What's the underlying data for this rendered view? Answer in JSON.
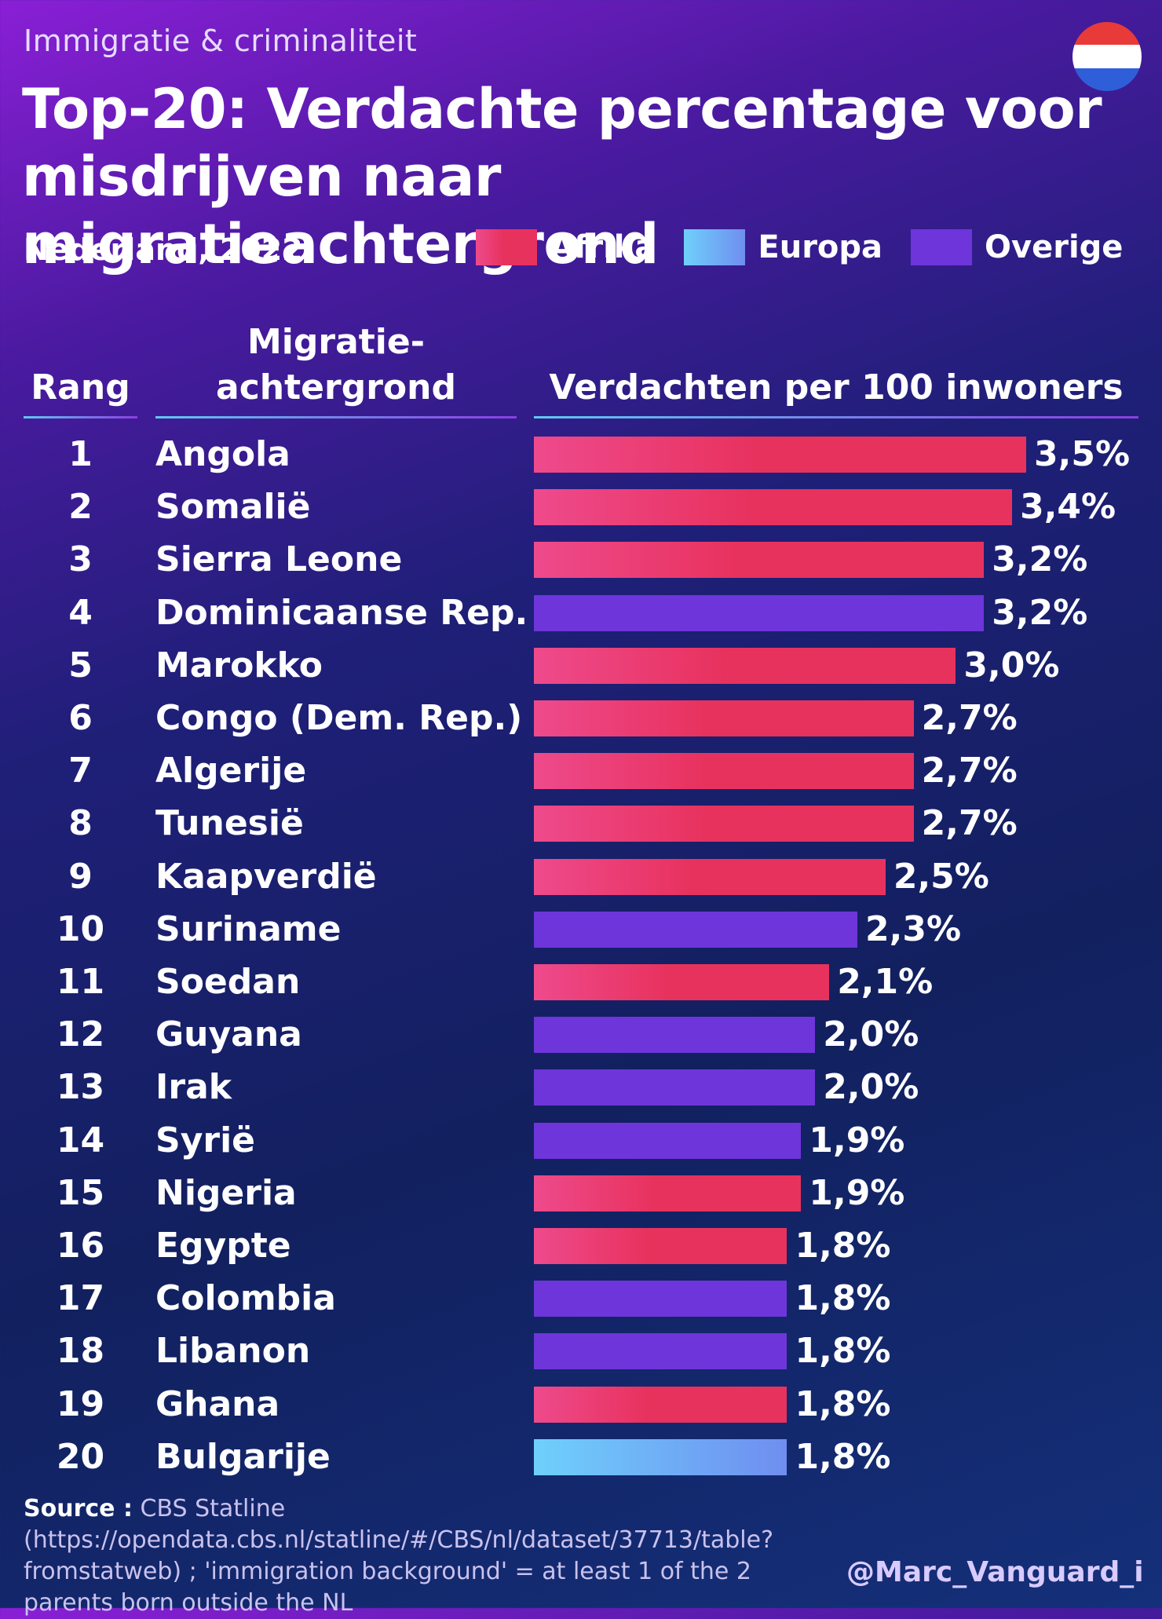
{
  "header": {
    "eyebrow": "Immigratie & criminaliteit",
    "title": "Top-20: Verdachte percentage voor misdrijven naar migratieachtergrond",
    "subtitle": "Nederland, 2022"
  },
  "legend": [
    {
      "label": "Afrika",
      "key": "afrika"
    },
    {
      "label": "Europa",
      "key": "europa"
    },
    {
      "label": "Overige",
      "key": "overige"
    }
  ],
  "colors": {
    "afrika_start": "#ee4a8c",
    "afrika_end": "#e8325e",
    "europa_start": "#6fd0fb",
    "europa_end": "#6f8ef0",
    "overige": "#6e35da",
    "flag_red": "#e93a3a",
    "flag_white": "#ffffff",
    "flag_blue": "#2f5fd8"
  },
  "columns": {
    "rank": "Rang",
    "country_line1": "Migratie-",
    "country_line2": "achtergrond",
    "value": "Verdachten per 100 inwoners"
  },
  "chart_data": {
    "type": "bar",
    "orientation": "horizontal",
    "title": "Top-20: Verdachte percentage voor misdrijven naar migratieachtergrond",
    "subtitle": "Nederland, 2022",
    "value_label": "Verdachten per 100 inwoners",
    "xlim": [
      0,
      3.5
    ],
    "rows": [
      {
        "rank": "1",
        "country": "Angola",
        "value": 3.5,
        "label": "3,5%",
        "group": "afrika"
      },
      {
        "rank": "2",
        "country": "Somalië",
        "value": 3.4,
        "label": "3,4%",
        "group": "afrika"
      },
      {
        "rank": "3",
        "country": "Sierra Leone",
        "value": 3.2,
        "label": "3,2%",
        "group": "afrika"
      },
      {
        "rank": "4",
        "country": "Dominicaanse Rep.",
        "value": 3.2,
        "label": "3,2%",
        "group": "overige"
      },
      {
        "rank": "5",
        "country": "Marokko",
        "value": 3.0,
        "label": "3,0%",
        "group": "afrika"
      },
      {
        "rank": "6",
        "country": "Congo (Dem. Rep.)",
        "value": 2.7,
        "label": "2,7%",
        "group": "afrika"
      },
      {
        "rank": "7",
        "country": "Algerije",
        "value": 2.7,
        "label": "2,7%",
        "group": "afrika"
      },
      {
        "rank": "8",
        "country": "Tunesië",
        "value": 2.7,
        "label": "2,7%",
        "group": "afrika"
      },
      {
        "rank": "9",
        "country": "Kaapverdië",
        "value": 2.5,
        "label": "2,5%",
        "group": "afrika"
      },
      {
        "rank": "10",
        "country": "Suriname",
        "value": 2.3,
        "label": "2,3%",
        "group": "overige"
      },
      {
        "rank": "11",
        "country": "Soedan",
        "value": 2.1,
        "label": "2,1%",
        "group": "afrika"
      },
      {
        "rank": "12",
        "country": "Guyana",
        "value": 2.0,
        "label": "2,0%",
        "group": "overige"
      },
      {
        "rank": "13",
        "country": "Irak",
        "value": 2.0,
        "label": "2,0%",
        "group": "overige"
      },
      {
        "rank": "14",
        "country": "Syrië",
        "value": 1.9,
        "label": "1,9%",
        "group": "overige"
      },
      {
        "rank": "15",
        "country": "Nigeria",
        "value": 1.9,
        "label": "1,9%",
        "group": "afrika"
      },
      {
        "rank": "16",
        "country": "Egypte",
        "value": 1.8,
        "label": "1,8%",
        "group": "afrika"
      },
      {
        "rank": "17",
        "country": "Colombia",
        "value": 1.8,
        "label": "1,8%",
        "group": "overige"
      },
      {
        "rank": "18",
        "country": "Libanon",
        "value": 1.8,
        "label": "1,8%",
        "group": "overige"
      },
      {
        "rank": "19",
        "country": "Ghana",
        "value": 1.8,
        "label": "1,8%",
        "group": "afrika"
      },
      {
        "rank": "20",
        "country": "Bulgarije",
        "value": 1.8,
        "label": "1,8%",
        "group": "europa"
      }
    ]
  },
  "footer": {
    "source_label": "Source :",
    "source_text": "CBS Statline (https://opendata.cbs.nl/statline/#/CBS/nl/dataset/37713/table?fromstatweb) ; 'immigration background' = at least 1 of the 2 parents born outside the NL",
    "handle": "@Marc_Vanguard_i"
  }
}
